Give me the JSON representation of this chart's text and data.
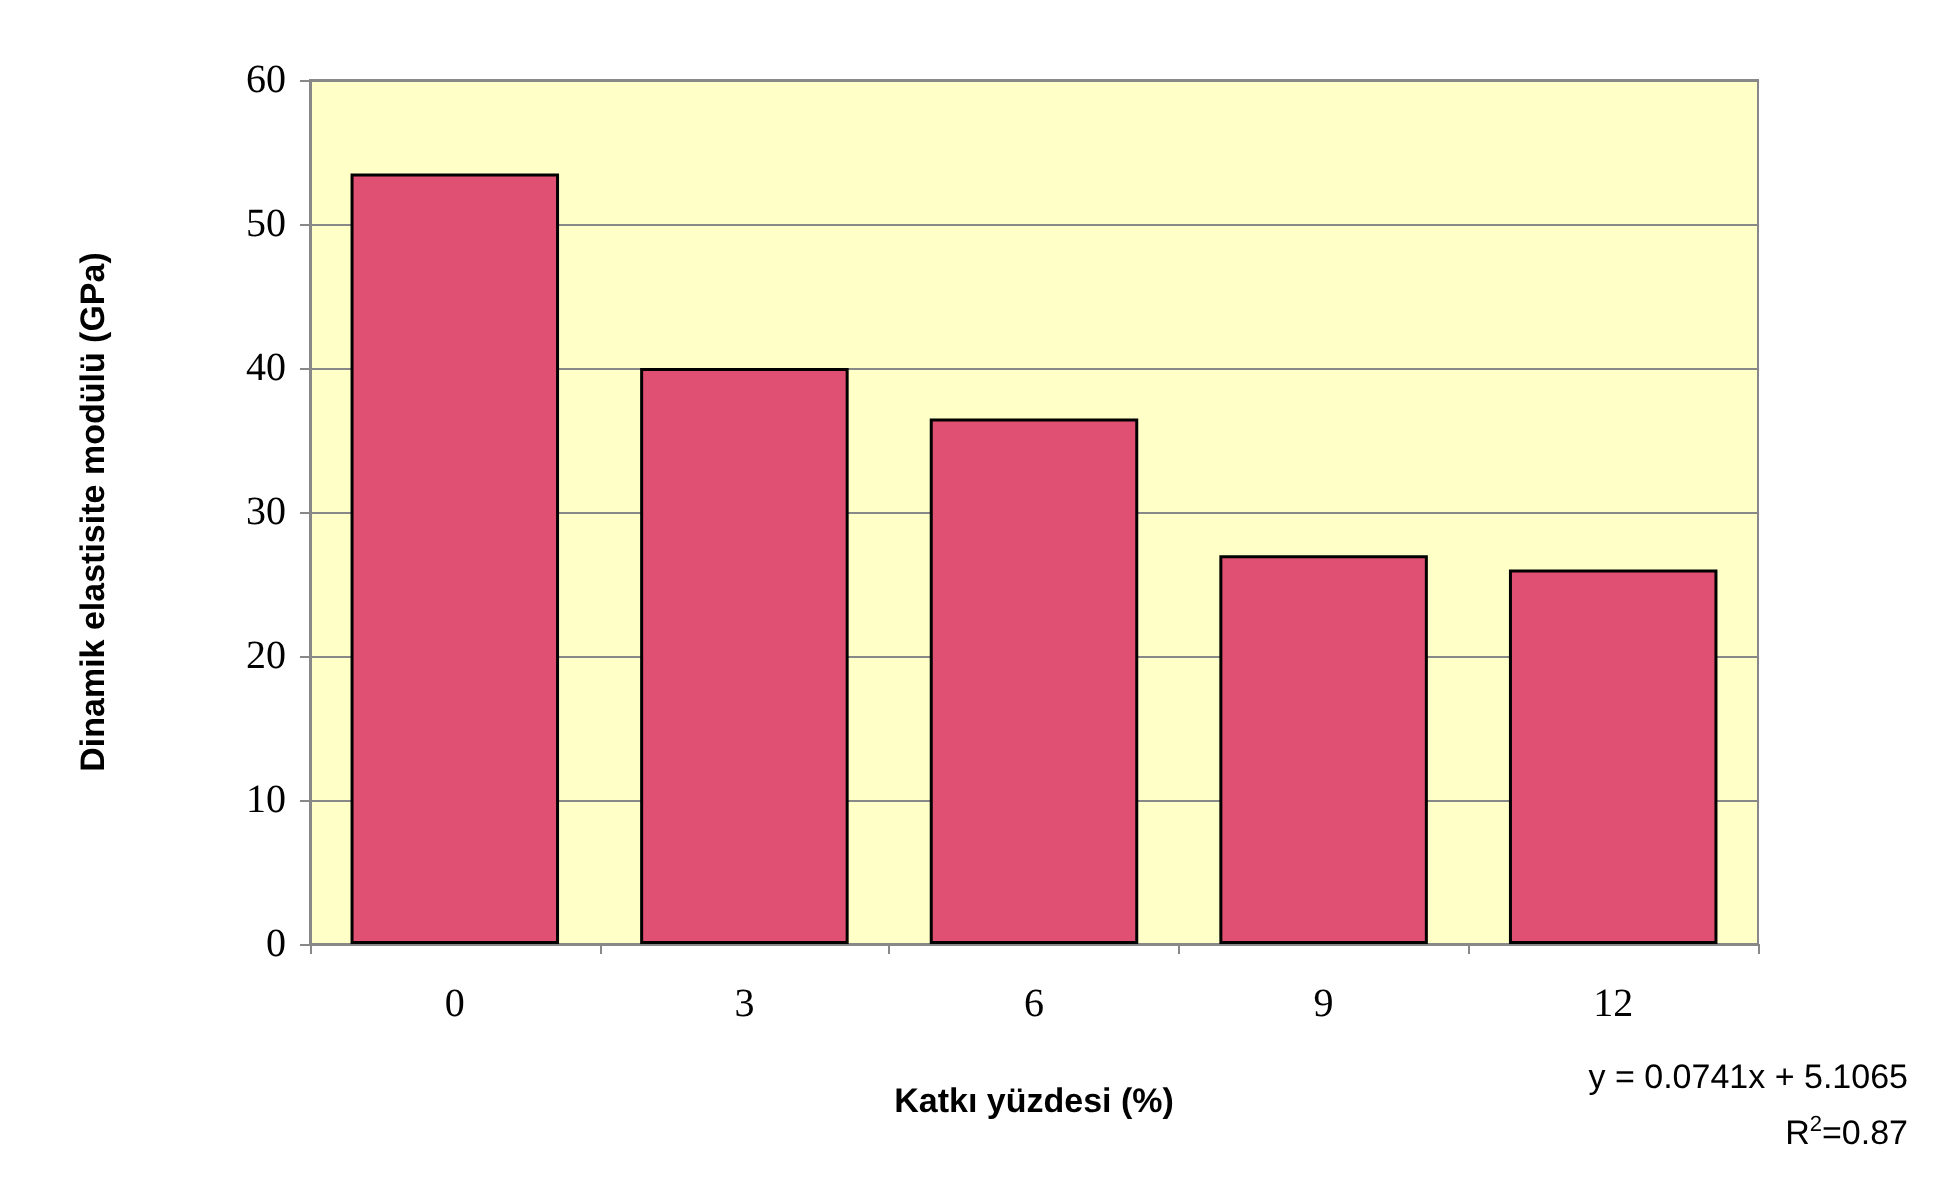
{
  "chart_data": {
    "type": "bar",
    "xlabel": "Katkı yüzdesi (%)",
    "ylabel": "Dinamik elastisite modülü (GPa)",
    "categories": [
      "0",
      "3",
      "6",
      "9",
      "12"
    ],
    "values": [
      53.5,
      40,
      36.5,
      27,
      26
    ],
    "color": "#e05072",
    "ylim": [
      0,
      60
    ],
    "yticks": [
      0,
      10,
      20,
      30,
      40,
      50,
      60
    ],
    "grid": "y",
    "annotations": [
      "y = 0.0741x + 5.1065",
      "R$^{2}$=0.87"
    ]
  }
}
